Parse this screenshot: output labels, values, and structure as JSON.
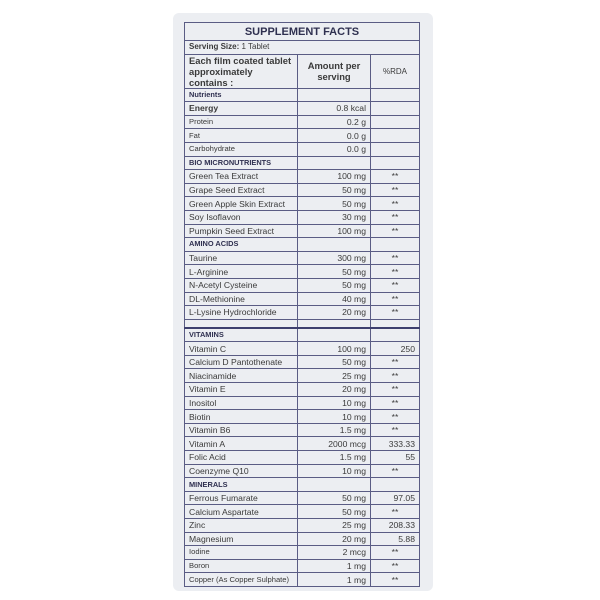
{
  "title": "SUPPLEMENT FACTS",
  "serving_label": "Serving Size:",
  "serving_value": "1 Tablet",
  "headers": {
    "name": "Each film coated tablet approximately contains :",
    "amount": "Amount per serving",
    "rda": "%RDA"
  },
  "sections": [
    {
      "title": "Nutrients",
      "rows": [
        {
          "name": "Energy",
          "amount": "0.8 kcal",
          "rda": "",
          "bold": true
        },
        {
          "name": "Protein",
          "amount": "0.2 g",
          "rda": "",
          "small": true
        },
        {
          "name": "Fat",
          "amount": "0.0 g",
          "rda": "",
          "small": true
        },
        {
          "name": "Carbohydrate",
          "amount": "0.0 g",
          "rda": "",
          "small": true
        }
      ]
    },
    {
      "title": "BIO MICRONUTRIENTS",
      "rows": [
        {
          "name": "Green Tea Extract",
          "amount": "100 mg",
          "rda": "**"
        },
        {
          "name": "Grape Seed Extract",
          "amount": "50 mg",
          "rda": "**"
        },
        {
          "name": "Green Apple Skin Extract",
          "amount": "50 mg",
          "rda": "**"
        },
        {
          "name": "Soy Isoflavon",
          "amount": "30 mg",
          "rda": "**"
        },
        {
          "name": "Pumpkin Seed Extract",
          "amount": "100 mg",
          "rda": "**"
        }
      ]
    },
    {
      "title": "AMINO ACIDS",
      "rows": [
        {
          "name": "Taurine",
          "amount": "300 mg",
          "rda": "**"
        },
        {
          "name": "L-Arginine",
          "amount": "50 mg",
          "rda": "**"
        },
        {
          "name": "N-Acetyl Cysteine",
          "amount": "50 mg",
          "rda": "**"
        },
        {
          "name": "DL-Methionine",
          "amount": "40 mg",
          "rda": "**"
        },
        {
          "name": "L-Lysine Hydrochloride",
          "amount": "20 mg",
          "rda": "**"
        }
      ],
      "gap_after": true
    },
    {
      "title": "VITAMINS",
      "rows": [
        {
          "name": "Vitamin C",
          "amount": "100 mg",
          "rda": "250"
        },
        {
          "name": "Calcium D Pantothenate",
          "amount": "50 mg",
          "rda": "**"
        },
        {
          "name": "Niacinamide",
          "amount": "25 mg",
          "rda": "**"
        },
        {
          "name": "Vitamin E",
          "amount": "20 mg",
          "rda": "**"
        },
        {
          "name": "Inositol",
          "amount": "10 mg",
          "rda": "**"
        },
        {
          "name": "Biotin",
          "amount": "10 mg",
          "rda": "**"
        },
        {
          "name": "Vitamin B6",
          "amount": "1.5 mg",
          "rda": "**"
        },
        {
          "name": "Vitamin A",
          "amount": "2000 mcg",
          "rda": "333.33"
        },
        {
          "name": "Folic Acid",
          "amount": "1.5 mg",
          "rda": "55"
        },
        {
          "name": "Coenzyme Q10",
          "amount": "10 mg",
          "rda": "**"
        }
      ]
    },
    {
      "title": "MINERALS",
      "rows": [
        {
          "name": "Ferrous Fumarate",
          "amount": "50 mg",
          "rda": "97.05"
        },
        {
          "name": "Calcium Aspartate",
          "amount": "50 mg",
          "rda": "**"
        },
        {
          "name": "Zinc",
          "amount": "25 mg",
          "rda": "208.33"
        },
        {
          "name": "Magnesium",
          "amount": "20 mg",
          "rda": "5.88"
        },
        {
          "name": "Iodine",
          "amount": "2 mcg",
          "rda": "**",
          "small": true
        },
        {
          "name": "Boron",
          "amount": "1 mg",
          "rda": "**",
          "small": true
        },
        {
          "name": "Copper (As Copper Sulphate)",
          "amount": "1 mg",
          "rda": "**",
          "small": true
        }
      ]
    }
  ]
}
